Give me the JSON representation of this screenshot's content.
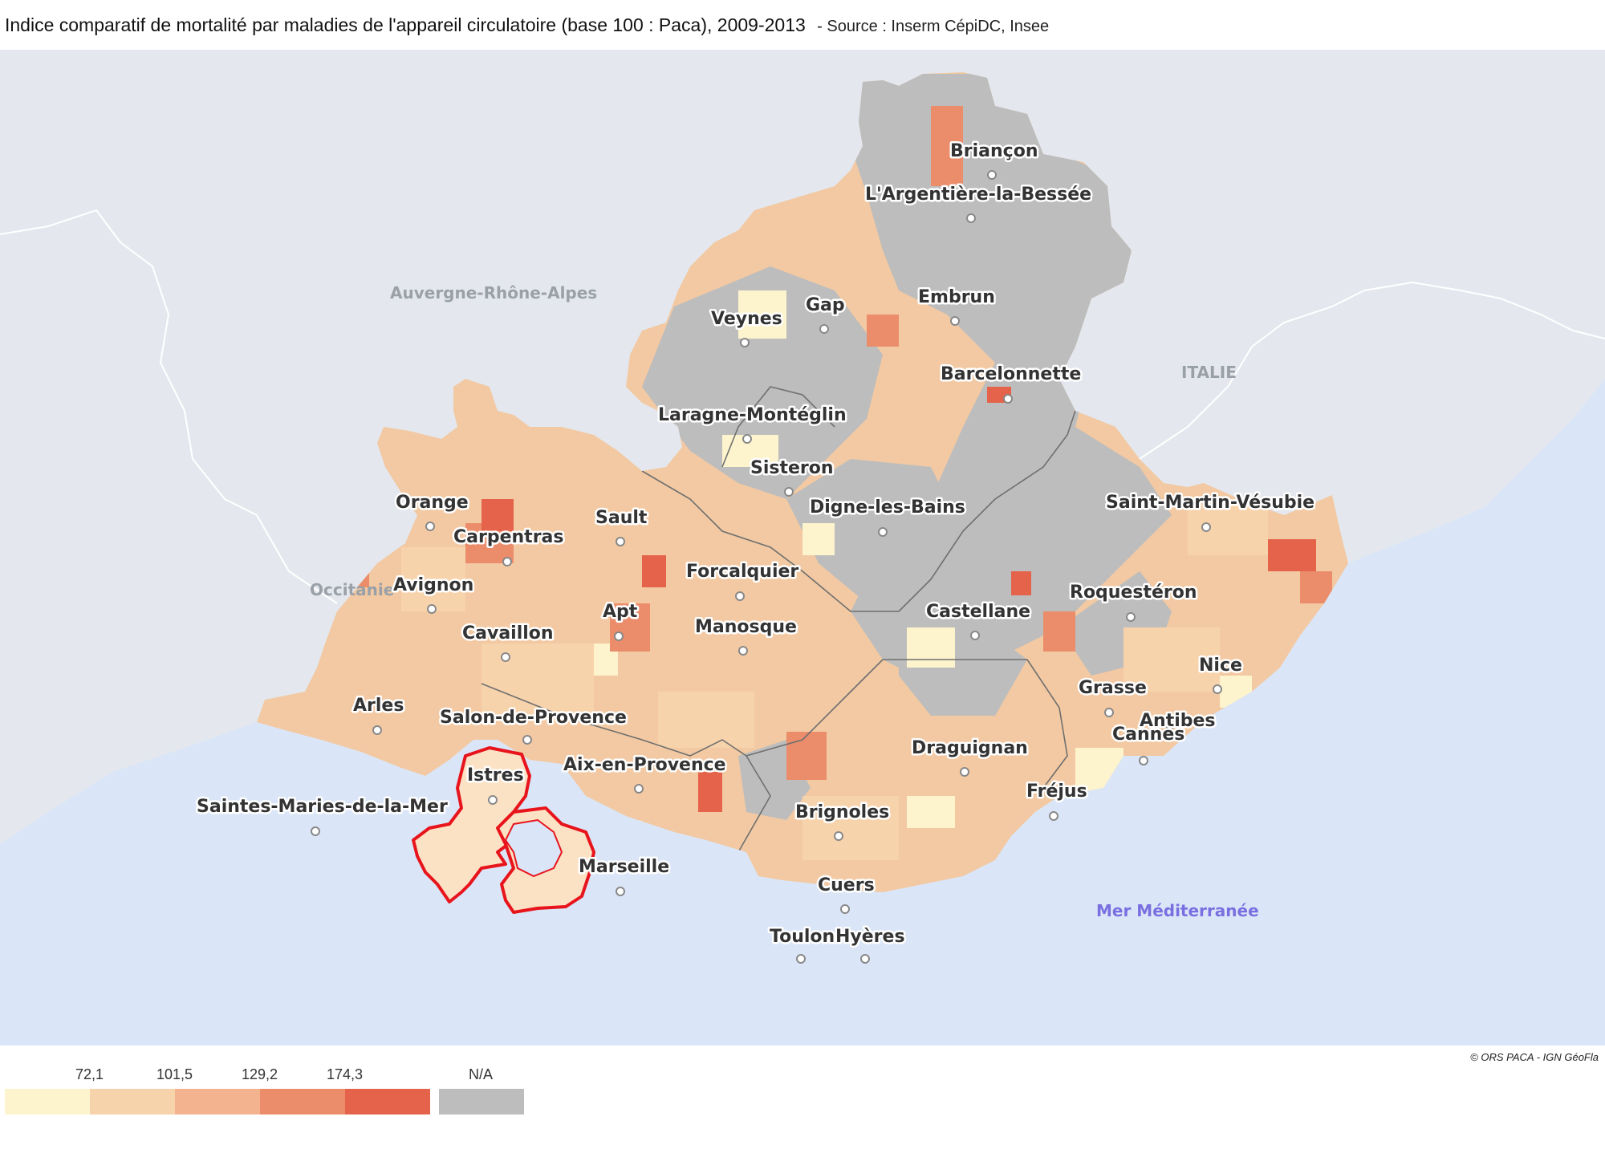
{
  "title": "Indice comparatif de mortalité par maladies de l'appareil circulatoire (base 100 : Paca), 2009-2013",
  "source": "- Source : Inserm CépiDC, Insee",
  "copyright": "© ORS PACA - IGN GéoFla",
  "colors": {
    "land_outside": "#e4e8ee",
    "sea": "#dae6f8",
    "na": "#bdbdbd",
    "classes": [
      "#fdf4cd",
      "#f7d3ac",
      "#f2b38e",
      "#eb8d6b",
      "#e4634a"
    ],
    "highlight": "#e8141c"
  },
  "legend": {
    "thresholds": [
      "72,1",
      "101,5",
      "129,2",
      "174,3"
    ],
    "na_label": "N/A"
  },
  "regions": {
    "auvergne": "Auvergne-Rhône-Alpes",
    "occitanie": "Occitanie",
    "italie": "ITALIE",
    "mer": "Mer Méditerranée"
  },
  "cities": {
    "briancon": "Briançon",
    "argentiere": "L'Argentière-la-Bessée",
    "gap": "Gap",
    "embrun": "Embrun",
    "veynes": "Veynes",
    "barcelonnette": "Barcelonnette",
    "laragne": "Laragne-Montéglin",
    "sisteron": "Sisteron",
    "orange": "Orange",
    "carpentras": "Carpentras",
    "sault": "Sault",
    "digne": "Digne-les-Bains",
    "saint_martin": "Saint-Martin-Vésubie",
    "forcalquier": "Forcalquier",
    "avignon": "Avignon",
    "apt": "Apt",
    "manosque": "Manosque",
    "castellane": "Castellane",
    "roquesteron": "Roquestéron",
    "cavaillon": "Cavaillon",
    "nice": "Nice",
    "arles": "Arles",
    "grasse": "Grasse",
    "salon": "Salon-de-Provence",
    "antibes": "Antibes",
    "cannes": "Cannes",
    "draguignan": "Draguignan",
    "istres": "Istres",
    "aix": "Aix-en-Provence",
    "frejus": "Fréjus",
    "saintes_maries": "Saintes-Maries-de-la-Mer",
    "brignoles": "Brignoles",
    "marseille": "Marseille",
    "cuers": "Cuers",
    "toulon": "Toulon",
    "hyeres": "Hyères"
  }
}
